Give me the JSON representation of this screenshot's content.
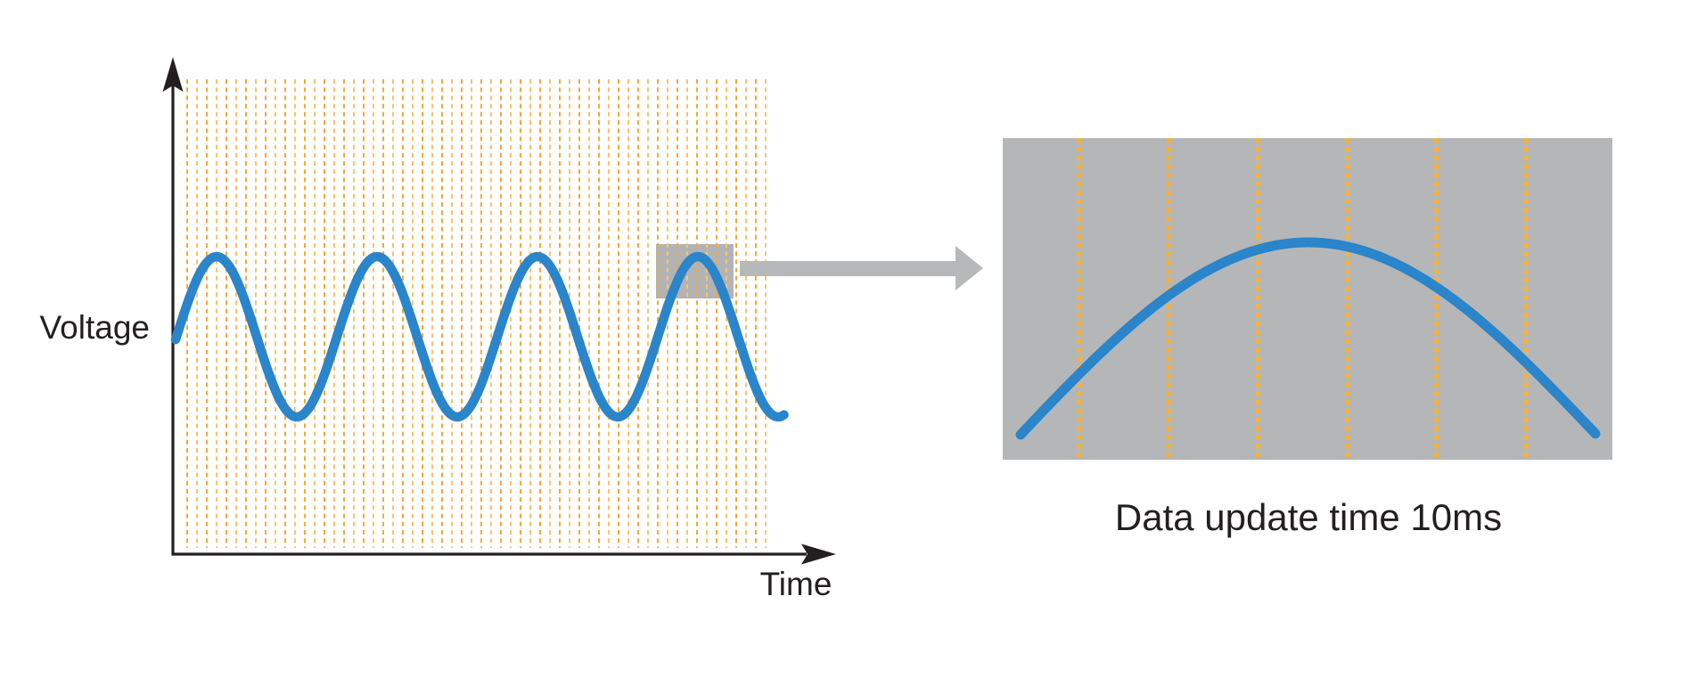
{
  "labels": {
    "y_axis": "Voltage",
    "x_axis": "Time",
    "zoom_caption": "Data update time 10ms"
  },
  "colors": {
    "axis": "#231f20",
    "text": "#231f20",
    "wave_blue": "#2a85ca",
    "grid_orange": "#f6a739",
    "grid_orange_light": "#f9c36c",
    "zoom_grid_orange": "#f8b133",
    "panel_gray": "#b5b6b8",
    "highlight_gray": "#b2b3b5",
    "arrow_gray": "#b7b8ba"
  },
  "chart_data": {
    "type": "line",
    "title": "",
    "xlabel": "Time",
    "ylabel": "Voltage",
    "caption": "Data update time 10ms",
    "waveform": "sine",
    "cycles_shown": 3.75,
    "axis_tick_labels": "none (conceptual diagram, unlabeled axes)",
    "grid": "dense vertical orange dashed lines = data update instants, every 10 ms",
    "zoom_panel": {
      "content": "magnified view of one sine peak",
      "visible_sample_lines": 6,
      "sample_interval_label": "Data update time 10ms"
    },
    "legend_position": "none",
    "series": [
      {
        "name": "Voltage waveform",
        "shape": "sine",
        "peaks": 4,
        "troughs": 4
      }
    ]
  }
}
